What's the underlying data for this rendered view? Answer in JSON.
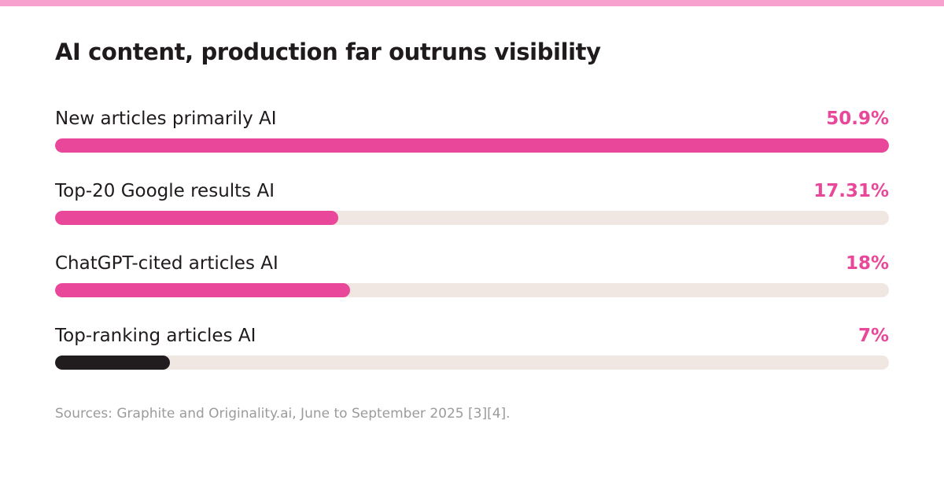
{
  "colors": {
    "accent": "#e9479a",
    "dark": "#211c1e",
    "track": "#f1e7e2",
    "top_strip": "#f7a1cf"
  },
  "chart_data": {
    "type": "bar",
    "orientation": "horizontal",
    "title": "AI content, production far outruns visibility",
    "categories": [
      "New articles primarily AI",
      "Top-20 Google results AI",
      "ChatGPT-cited articles AI",
      "Top-ranking articles AI"
    ],
    "values": [
      50.9,
      17.31,
      18,
      7
    ],
    "value_labels": [
      "50.9%",
      "17.31%",
      "18%",
      "7%"
    ],
    "bar_colors": [
      "#e9479a",
      "#e9479a",
      "#e9479a",
      "#211c1e"
    ],
    "label_colors": [
      "#e9479a",
      "#e9479a",
      "#e9479a",
      "#e9479a"
    ],
    "xlim": [
      0,
      50.9
    ],
    "grid": false,
    "legend": "none"
  },
  "footer": {
    "source": "Sources: Graphite and Originality.ai, June to September 2025 [3][4]."
  }
}
